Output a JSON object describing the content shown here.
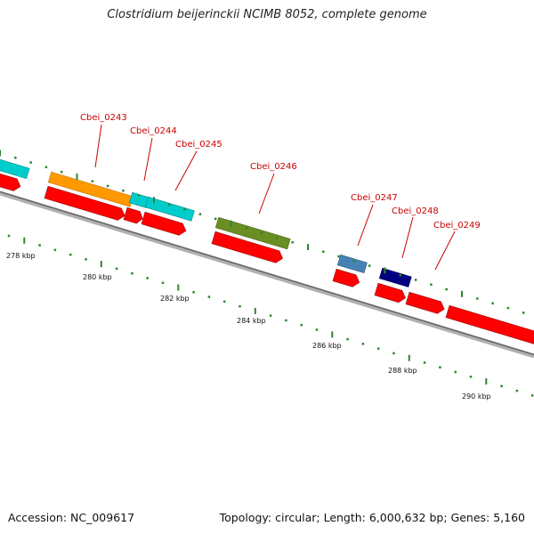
{
  "title": "Clostridium beijerinckii NCIMB 8052, complete genome",
  "footer": {
    "accession": "Accession: NC_009617",
    "topology": "Topology: circular; Length: 6,000,632 bp; Genes: 5,160"
  },
  "colors": {
    "cds": "#ff0000",
    "backbone": "#888888",
    "tick": "#2d862d",
    "label": "#cc0000",
    "Cbei_0243": "#ff9900",
    "Cbei_0244": "#00cccc",
    "Cbei_0245": "#00cccc",
    "Cbei_0246": "#6b8e23",
    "Cbei_0247": "#4682b4",
    "Cbei_0248": "#000080",
    "previous_gene": "#00cccc"
  },
  "gene_labels": [
    "Cbei_0243",
    "Cbei_0244",
    "Cbei_0245",
    "Cbei_0246",
    "Cbei_0247",
    "Cbei_0248",
    "Cbei_0249"
  ],
  "kbp_labels": [
    "278 kbp",
    "280 kbp",
    "282 kbp",
    "284 kbp",
    "286 kbp",
    "288 kbp",
    "290 kbp"
  ]
}
